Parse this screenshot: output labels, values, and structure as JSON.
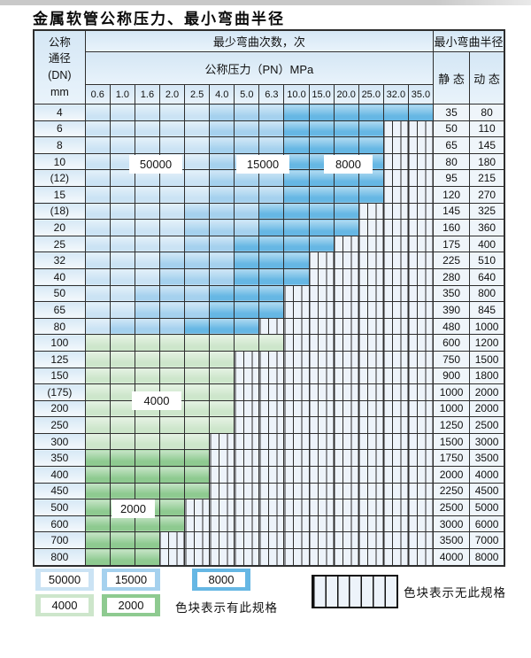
{
  "title": "金属软管公称压力、最小弯曲半径",
  "table": {
    "header": {
      "dn_lines": [
        "公称",
        "通径",
        "(DN)",
        "mm"
      ],
      "bend_cycles_label": "最少弯曲次数，次",
      "pressure_label": "公称压力（PN）MPa",
      "radius_label": "最小弯曲半径",
      "static_label": "静 态",
      "dynamic_label": "动 态",
      "pressures": [
        "0.6",
        "1.0",
        "1.6",
        "2.0",
        "2.5",
        "4.0",
        "5.0",
        "6.3",
        "10.0",
        "15.0",
        "20.0",
        "25.0",
        "32.0",
        "35.0"
      ]
    },
    "rows": [
      {
        "dn": "4",
        "static": "35",
        "dynamic": "80",
        "bands": [
          [
            "50000",
            5
          ],
          [
            "15000",
            3
          ],
          [
            "8000",
            6
          ]
        ]
      },
      {
        "dn": "6",
        "static": "50",
        "dynamic": "110",
        "bands": [
          [
            "50000",
            5
          ],
          [
            "15000",
            3
          ],
          [
            "8000",
            4
          ],
          [
            "none",
            2
          ]
        ]
      },
      {
        "dn": "8",
        "static": "65",
        "dynamic": "145",
        "bands": [
          [
            "50000",
            5
          ],
          [
            "15000",
            3
          ],
          [
            "8000",
            4
          ],
          [
            "none",
            2
          ]
        ]
      },
      {
        "dn": "10",
        "static": "80",
        "dynamic": "180",
        "bands": [
          [
            "50000",
            5
          ],
          [
            "15000",
            3
          ],
          [
            "8000",
            4
          ],
          [
            "none",
            2
          ]
        ]
      },
      {
        "dn": "(12)",
        "static": "95",
        "dynamic": "215",
        "bands": [
          [
            "50000",
            5
          ],
          [
            "15000",
            3
          ],
          [
            "8000",
            4
          ],
          [
            "none",
            2
          ]
        ]
      },
      {
        "dn": "15",
        "static": "120",
        "dynamic": "270",
        "bands": [
          [
            "50000",
            5
          ],
          [
            "15000",
            3
          ],
          [
            "8000",
            4
          ],
          [
            "none",
            2
          ]
        ]
      },
      {
        "dn": "(18)",
        "static": "145",
        "dynamic": "325",
        "bands": [
          [
            "50000",
            4
          ],
          [
            "15000",
            3
          ],
          [
            "8000",
            4
          ],
          [
            "none",
            3
          ]
        ]
      },
      {
        "dn": "20",
        "static": "160",
        "dynamic": "360",
        "bands": [
          [
            "50000",
            4
          ],
          [
            "15000",
            3
          ],
          [
            "8000",
            4
          ],
          [
            "none",
            3
          ]
        ]
      },
      {
        "dn": "25",
        "static": "175",
        "dynamic": "400",
        "bands": [
          [
            "50000",
            4
          ],
          [
            "15000",
            2
          ],
          [
            "8000",
            4
          ],
          [
            "none",
            4
          ]
        ]
      },
      {
        "dn": "32",
        "static": "225",
        "dynamic": "510",
        "bands": [
          [
            "50000",
            3
          ],
          [
            "15000",
            3
          ],
          [
            "8000",
            3
          ],
          [
            "none",
            5
          ]
        ]
      },
      {
        "dn": "40",
        "static": "280",
        "dynamic": "640",
        "bands": [
          [
            "50000",
            3
          ],
          [
            "15000",
            3
          ],
          [
            "8000",
            3
          ],
          [
            "none",
            5
          ]
        ]
      },
      {
        "dn": "50",
        "static": "350",
        "dynamic": "800",
        "bands": [
          [
            "50000",
            2
          ],
          [
            "15000",
            3
          ],
          [
            "8000",
            3
          ],
          [
            "none",
            6
          ]
        ]
      },
      {
        "dn": "65",
        "static": "390",
        "dynamic": "845",
        "bands": [
          [
            "50000",
            2
          ],
          [
            "15000",
            3
          ],
          [
            "8000",
            3
          ],
          [
            "none",
            6
          ]
        ]
      },
      {
        "dn": "80",
        "static": "480",
        "dynamic": "1000",
        "bands": [
          [
            "50000",
            1
          ],
          [
            "15000",
            3
          ],
          [
            "8000",
            3
          ],
          [
            "none",
            7
          ]
        ]
      },
      {
        "dn": "100",
        "static": "600",
        "dynamic": "1200",
        "bands": [
          [
            "4000",
            8
          ],
          [
            "none",
            6
          ]
        ]
      },
      {
        "dn": "125",
        "static": "750",
        "dynamic": "1500",
        "bands": [
          [
            "4000",
            6
          ],
          [
            "none",
            8
          ]
        ]
      },
      {
        "dn": "150",
        "static": "900",
        "dynamic": "1800",
        "bands": [
          [
            "4000",
            6
          ],
          [
            "none",
            8
          ]
        ]
      },
      {
        "dn": "(175)",
        "static": "1000",
        "dynamic": "2000",
        "bands": [
          [
            "4000",
            6
          ],
          [
            "none",
            8
          ]
        ]
      },
      {
        "dn": "200",
        "static": "1000",
        "dynamic": "2000",
        "bands": [
          [
            "4000",
            6
          ],
          [
            "none",
            8
          ]
        ]
      },
      {
        "dn": "250",
        "static": "1250",
        "dynamic": "2500",
        "bands": [
          [
            "4000",
            6
          ],
          [
            "none",
            8
          ]
        ]
      },
      {
        "dn": "300",
        "static": "1500",
        "dynamic": "3000",
        "bands": [
          [
            "4000",
            5
          ],
          [
            "none",
            9
          ]
        ]
      },
      {
        "dn": "350",
        "static": "1750",
        "dynamic": "3500",
        "bands": [
          [
            "2000",
            5
          ],
          [
            "none",
            9
          ]
        ]
      },
      {
        "dn": "400",
        "static": "2000",
        "dynamic": "4000",
        "bands": [
          [
            "2000",
            5
          ],
          [
            "none",
            9
          ]
        ]
      },
      {
        "dn": "450",
        "static": "2250",
        "dynamic": "4500",
        "bands": [
          [
            "2000",
            5
          ],
          [
            "none",
            9
          ]
        ]
      },
      {
        "dn": "500",
        "static": "2500",
        "dynamic": "5000",
        "bands": [
          [
            "2000",
            4
          ],
          [
            "none",
            10
          ]
        ]
      },
      {
        "dn": "600",
        "static": "3000",
        "dynamic": "6000",
        "bands": [
          [
            "2000",
            4
          ],
          [
            "none",
            10
          ]
        ]
      },
      {
        "dn": "700",
        "static": "3500",
        "dynamic": "7000",
        "bands": [
          [
            "2000",
            3
          ],
          [
            "none",
            11
          ]
        ]
      },
      {
        "dn": "800",
        "static": "4000",
        "dynamic": "8000",
        "bands": [
          [
            "2000",
            3
          ],
          [
            "none",
            11
          ]
        ]
      }
    ]
  },
  "table_labels": {
    "v50000": "50000",
    "v15000": "15000",
    "v8000": "8000",
    "v4000": "4000",
    "v2000": "2000"
  },
  "legend": {
    "items": [
      {
        "value": "50000"
      },
      {
        "value": "15000"
      },
      {
        "value": "8000"
      },
      {
        "value": "4000"
      },
      {
        "value": "2000"
      }
    ],
    "has_spec_note": "色块表示有此规格",
    "no_spec_note": "色块表示无此规格"
  },
  "colors": {
    "border": "#2e2e2e",
    "c50000": "#cbe3f4",
    "c15000": "#a5d1ee",
    "c8000": "#66b7e4",
    "c4000": "#cde6cb",
    "c2000": "#8eca90",
    "stripe": "#edf3fa"
  }
}
